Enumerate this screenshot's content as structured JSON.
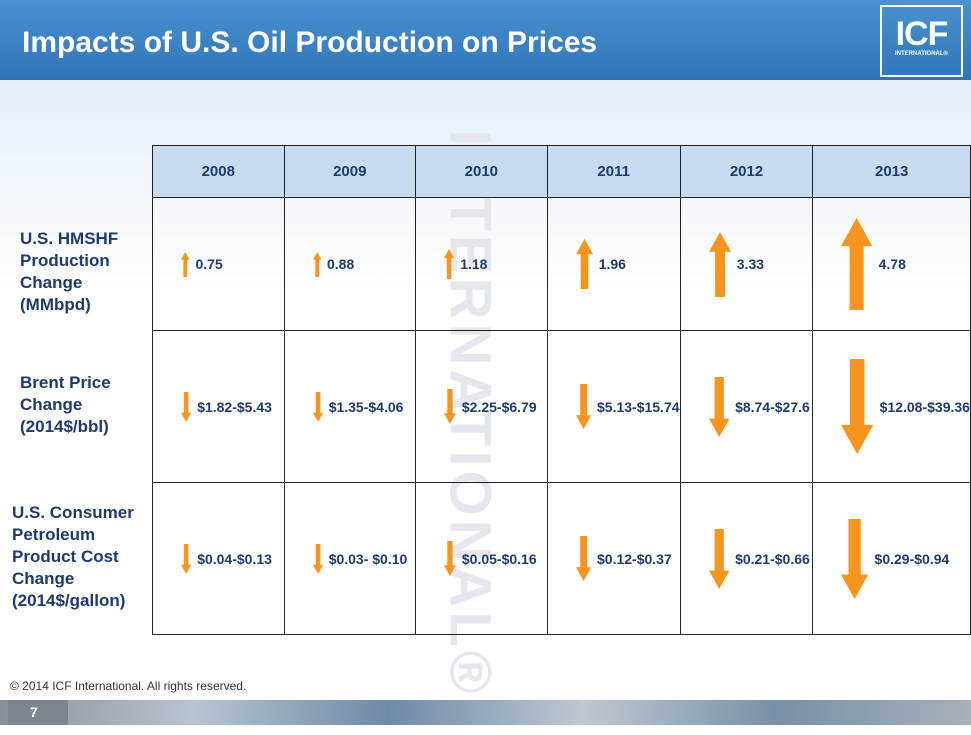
{
  "header": {
    "title": "Impacts of U.S. Oil Production on Prices",
    "logo": "ICF",
    "logo_sub": "INTERNATIONAL®"
  },
  "watermark": "INTERNATIONAL®",
  "table": {
    "columns": [
      "2008",
      "2009",
      "2010",
      "2011",
      "2012",
      "2013"
    ],
    "rows": [
      {
        "label": "U.S. HMSHF Production Change (MMbpd)",
        "cells": [
          "0.75",
          "0.88",
          "1.18",
          "1.96",
          "3.33",
          "4.78"
        ]
      },
      {
        "label": "Brent Price Change (2014$/bbl)",
        "cells": [
          "$1.82-$5.43",
          "$1.35-$4.06",
          "$2.25-$6.79",
          "$5.13-$15.74",
          "$8.74-$27.6",
          "$12.08-$39.36"
        ]
      },
      {
        "label": "U.S. Consumer Petroleum Product Cost Change (2014$/gallon)",
        "cells": [
          "$0.04-$0.13",
          "$0.03- $0.10",
          "$0.05-$0.16",
          "$0.12-$0.37",
          "$0.21-$0.66",
          "$0.29-$0.94"
        ]
      }
    ]
  },
  "footer": {
    "copyright": "© 2014 ICF International. All rights reserved.",
    "page": "7"
  }
}
